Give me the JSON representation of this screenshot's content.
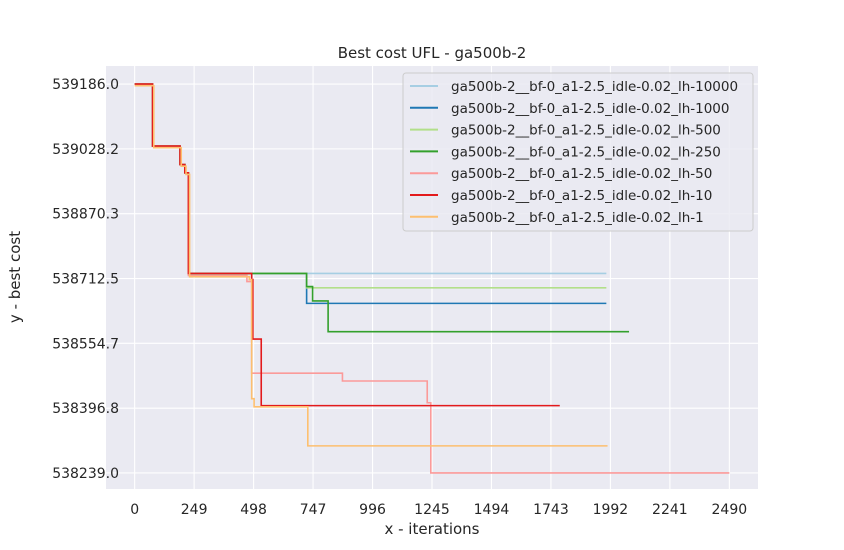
{
  "chart_data": {
    "type": "line",
    "title": "Best cost UFL - ga500b-2",
    "xlabel": "x - iterations",
    "ylabel": "y - best cost",
    "xlim": [
      -120,
      2610
    ],
    "ylim": [
      538200,
      539230
    ],
    "xticks": [
      0,
      249,
      498,
      747,
      996,
      1245,
      1494,
      1743,
      1992,
      2241,
      2490
    ],
    "xtick_labels": [
      "0",
      "249",
      "498",
      "747",
      "996",
      "1245",
      "1494",
      "1743",
      "1992",
      "2241",
      "2490"
    ],
    "yticks": [
      539186.0,
      539028.2,
      538870.3,
      538712.5,
      538554.7,
      538396.8,
      538239.0
    ],
    "ytick_labels": [
      "539186.0",
      "539028.2",
      "538870.3",
      "538712.5",
      "538554.7",
      "538396.8",
      "538239.0"
    ],
    "grid": true,
    "legend_position": "top-right",
    "series": [
      {
        "name": "ga500b-2__bf-0_a1-2.5_idle-0.02_lh-10000",
        "color": "#a6cee3",
        "x": [
          0,
          75,
          75,
          190,
          190,
          210,
          210,
          225,
          225,
          1975
        ],
        "y": [
          539186,
          539186,
          539035,
          539035,
          538990,
          538990,
          538970,
          538970,
          538725,
          538725
        ]
      },
      {
        "name": "ga500b-2__bf-0_a1-2.5_idle-0.02_lh-1000",
        "color": "#1f78b4",
        "x": [
          0,
          75,
          75,
          190,
          190,
          210,
          210,
          225,
          225,
          720,
          720,
          1975
        ],
        "y": [
          539186,
          539186,
          539035,
          539035,
          538990,
          538990,
          538970,
          538970,
          538725,
          538725,
          538652,
          538652
        ]
      },
      {
        "name": "ga500b-2__bf-0_a1-2.5_idle-0.02_lh-500",
        "color": "#b2df8a",
        "x": [
          0,
          75,
          75,
          190,
          190,
          210,
          210,
          225,
          225,
          720,
          720,
          1975
        ],
        "y": [
          539186,
          539186,
          539035,
          539035,
          538990,
          538990,
          538970,
          538970,
          538725,
          538725,
          538690,
          538690
        ]
      },
      {
        "name": "ga500b-2__bf-0_a1-2.5_idle-0.02_lh-250",
        "color": "#33a02c",
        "x": [
          0,
          75,
          75,
          190,
          190,
          210,
          210,
          225,
          225,
          720,
          720,
          745,
          745,
          810,
          810,
          2070
        ],
        "y": [
          539186,
          539186,
          539035,
          539035,
          538990,
          538990,
          538970,
          538970,
          538725,
          538725,
          538693,
          538693,
          538658,
          538658,
          538583,
          538583
        ]
      },
      {
        "name": "ga500b-2__bf-0_a1-2.5_idle-0.02_lh-50",
        "color": "#fb9a99",
        "x": [
          0,
          75,
          75,
          190,
          190,
          210,
          210,
          225,
          225,
          470,
          470,
          490,
          490,
          870,
          870,
          1225,
          1225,
          1240,
          1240,
          2490
        ],
        "y": [
          539186,
          539186,
          539035,
          539035,
          538990,
          538990,
          538970,
          538970,
          538720,
          538720,
          538705,
          538705,
          538482,
          538482,
          538463,
          538463,
          538410,
          538410,
          538239,
          538239
        ]
      },
      {
        "name": "ga500b-2__bf-0_a1-2.5_idle-0.02_lh-10",
        "color": "#e31a1c",
        "x": [
          0,
          75,
          75,
          190,
          190,
          210,
          210,
          225,
          225,
          490,
          490,
          495,
          495,
          530,
          530,
          1780
        ],
        "y": [
          539186,
          539186,
          539035,
          539035,
          538990,
          538990,
          538970,
          538970,
          538725,
          538725,
          538710,
          538710,
          538565,
          538565,
          538403,
          538403
        ]
      },
      {
        "name": "ga500b-2__bf-0_a1-2.5_idle-0.02_lh-1",
        "color": "#fdbf6f",
        "x": [
          0,
          80,
          80,
          195,
          195,
          215,
          215,
          230,
          230,
          480,
          480,
          490,
          490,
          500,
          500,
          725,
          725,
          1980
        ],
        "y": [
          539182,
          539182,
          539031,
          539031,
          538986,
          538986,
          538966,
          538966,
          538717,
          538717,
          538710,
          538710,
          538420,
          538420,
          538400,
          538400,
          538305,
          538305
        ]
      }
    ]
  }
}
